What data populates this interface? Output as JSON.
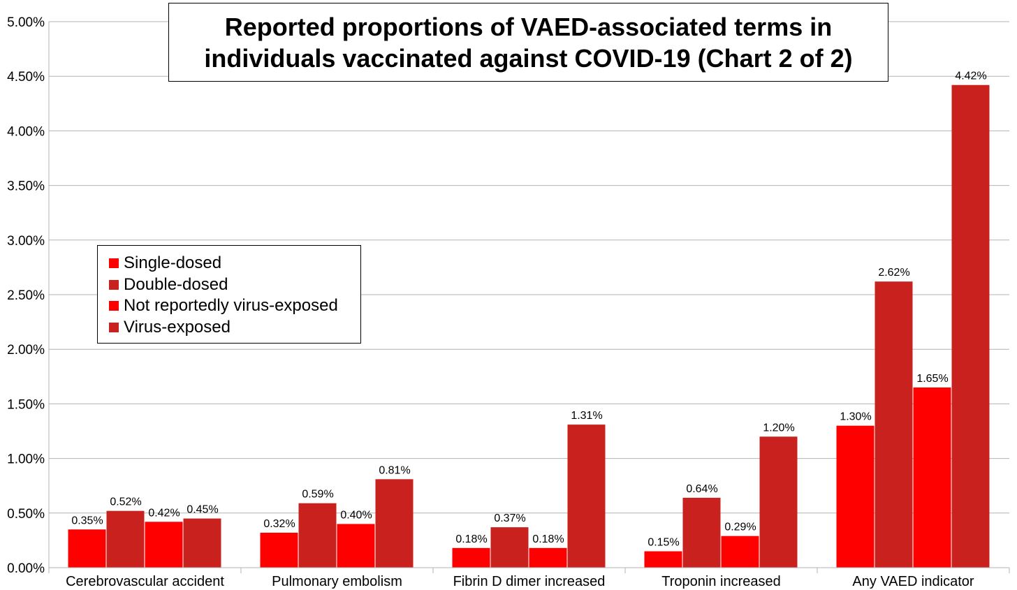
{
  "chart_data": {
    "type": "bar",
    "title": "Reported proportions of VAED-associated terms in individuals vaccinated against COVID-19 (Chart 2 of 2)",
    "categories": [
      "Cerebrovascular accident",
      "Pulmonary embolism",
      "Fibrin D dimer increased",
      "Troponin increased",
      "Any VAED indicator"
    ],
    "series": [
      {
        "name": "Single-dosed",
        "color": "#ff0000",
        "values": [
          0.35,
          0.32,
          0.18,
          0.15,
          1.3
        ]
      },
      {
        "name": "Double-dosed",
        "color": "#c9211e",
        "values": [
          0.52,
          0.59,
          0.37,
          0.64,
          2.62
        ]
      },
      {
        "name": "Not reportedly virus-exposed",
        "color": "#ff0000",
        "values": [
          0.42,
          0.4,
          0.18,
          0.29,
          1.65
        ]
      },
      {
        "name": "Virus-exposed",
        "color": "#c9211e",
        "values": [
          0.45,
          0.81,
          1.31,
          1.2,
          4.42
        ]
      }
    ],
    "data_labels": [
      [
        "0.35%",
        "0.32%",
        "0.18%",
        "0.15%",
        "1.30%"
      ],
      [
        "0.52%",
        "0.59%",
        "0.37%",
        "0.64%",
        "2.62%"
      ],
      [
        "0.42%",
        "0.40%",
        "0.18%",
        "0.29%",
        "1.65%"
      ],
      [
        "0.45%",
        "0.81%",
        "1.31%",
        "1.20%",
        "4.42%"
      ]
    ],
    "y_ticks": [
      0,
      0.5,
      1.0,
      1.5,
      2.0,
      2.5,
      3.0,
      3.5,
      4.0,
      4.5,
      5.0
    ],
    "y_tick_labels": [
      "0.00%",
      "0.50%",
      "1.00%",
      "1.50%",
      "2.00%",
      "2.50%",
      "3.00%",
      "3.50%",
      "4.00%",
      "4.50%",
      "5.00%"
    ],
    "ylim": [
      0,
      5
    ],
    "grid": true,
    "legend_position": "left-middle"
  }
}
